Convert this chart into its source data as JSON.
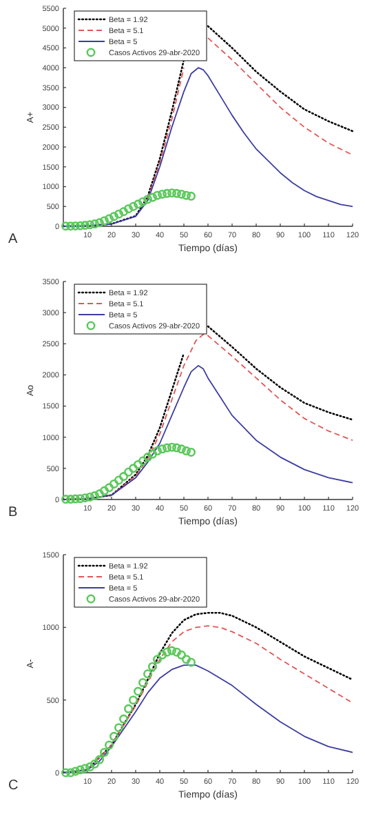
{
  "chart_data": [
    {
      "type": "line",
      "xlabel": "Tiempo (días)",
      "ylabel": "A+",
      "xlim": [
        0,
        120
      ],
      "xticks": [
        10,
        20,
        30,
        40,
        50,
        60,
        70,
        80,
        90,
        100,
        110,
        120
      ],
      "ylim": [
        0,
        5500
      ],
      "yticks": [
        0,
        500,
        1000,
        1500,
        2000,
        2500,
        3000,
        3500,
        4000,
        4500,
        5000,
        5500
      ],
      "legend": "top left",
      "annotations": [
        "A"
      ],
      "series": [
        {
          "name": "Beta = 1.92",
          "color": "#000000",
          "line_style": "dotted",
          "x": [
            0,
            10,
            20,
            30,
            35,
            40,
            45,
            50,
            52,
            60,
            70,
            80,
            90,
            100,
            110,
            120
          ],
          "values": [
            0,
            10,
            60,
            260,
            750,
            1700,
            2900,
            4200,
            null,
            5050,
            4500,
            3900,
            3400,
            2950,
            2650,
            2400
          ]
        },
        {
          "name": "Beta = 5.1",
          "color": "#e05555",
          "line_style": "dashed",
          "x": [
            35,
            40,
            45,
            50,
            52,
            60,
            70,
            80,
            90,
            100,
            110,
            120
          ],
          "values": [
            700,
            1600,
            2700,
            4000,
            null,
            4750,
            4200,
            3600,
            3000,
            2500,
            2100,
            1800
          ]
        },
        {
          "name": "Beta = 5",
          "color": "#3c3ca0",
          "line_style": "solid",
          "x": [
            0,
            10,
            20,
            30,
            35,
            40,
            45,
            50,
            53,
            56,
            58,
            60,
            65,
            70,
            75,
            80,
            85,
            90,
            95,
            100,
            105,
            110,
            115,
            120
          ],
          "values": [
            0,
            10,
            60,
            250,
            650,
            1500,
            2500,
            3400,
            3850,
            4000,
            3950,
            3800,
            3300,
            2800,
            2350,
            1950,
            1650,
            1350,
            1100,
            900,
            750,
            650,
            550,
            500
          ]
        },
        {
          "name": "Casos Activos 29-abr-2020",
          "color": "#5cc85c",
          "type": "scatter",
          "marker": "circle",
          "x": [
            1,
            3,
            5,
            7,
            9,
            11,
            13,
            15,
            17,
            19,
            21,
            23,
            25,
            27,
            29,
            31,
            33,
            35,
            37,
            39,
            41,
            43,
            45,
            47,
            49,
            51,
            53
          ],
          "values": [
            5,
            5,
            10,
            15,
            25,
            40,
            60,
            90,
            140,
            190,
            250,
            310,
            370,
            440,
            500,
            560,
            620,
            680,
            730,
            780,
            810,
            830,
            840,
            830,
            810,
            780,
            760
          ]
        }
      ]
    },
    {
      "type": "line",
      "xlabel": "Tiempo (días)",
      "ylabel": "Ao",
      "xlim": [
        0,
        120
      ],
      "xticks": [
        10,
        20,
        30,
        40,
        50,
        60,
        70,
        80,
        90,
        100,
        110,
        120
      ],
      "ylim": [
        0,
        3500
      ],
      "yticks": [
        0,
        500,
        1000,
        1500,
        2000,
        2500,
        3000,
        3500
      ],
      "legend": "top left",
      "annotations": [
        "B"
      ],
      "series": [
        {
          "name": "Beta = 1.92",
          "color": "#000000",
          "line_style": "dotted",
          "x": [
            0,
            10,
            20,
            30,
            35,
            40,
            45,
            50,
            55,
            60,
            70,
            80,
            90,
            100,
            110,
            120
          ],
          "values": [
            0,
            10,
            70,
            400,
            700,
            1150,
            1750,
            2350,
            null,
            2780,
            2450,
            2100,
            1800,
            1550,
            1400,
            1280
          ]
        },
        {
          "name": "Beta = 5.1",
          "color": "#e05555",
          "line_style": "dashed",
          "x": [
            0,
            10,
            20,
            30,
            35,
            40,
            45,
            50,
            55,
            58,
            60,
            70,
            80,
            90,
            100,
            110,
            120
          ],
          "values": [
            0,
            10,
            70,
            380,
            650,
            1050,
            1600,
            2150,
            2550,
            2650,
            2630,
            2300,
            1950,
            1600,
            1300,
            1100,
            950
          ]
        },
        {
          "name": "Beta = 5",
          "color": "#3c3ca0",
          "line_style": "solid",
          "x": [
            0,
            10,
            20,
            30,
            35,
            40,
            45,
            50,
            53,
            56,
            58,
            60,
            65,
            70,
            80,
            90,
            100,
            110,
            120
          ],
          "values": [
            0,
            10,
            70,
            350,
            600,
            900,
            1350,
            1800,
            2050,
            2150,
            2100,
            1950,
            1650,
            1350,
            950,
            680,
            480,
            350,
            270
          ]
        },
        {
          "name": "Casos Activos 29-abr-2020",
          "color": "#5cc85c",
          "type": "scatter",
          "marker": "circle",
          "x": [
            1,
            3,
            5,
            7,
            9,
            11,
            13,
            15,
            17,
            19,
            21,
            23,
            25,
            27,
            29,
            31,
            33,
            35,
            37,
            39,
            41,
            43,
            45,
            47,
            49,
            51,
            53
          ],
          "values": [
            5,
            5,
            10,
            15,
            25,
            40,
            60,
            90,
            140,
            190,
            250,
            310,
            370,
            440,
            500,
            560,
            620,
            680,
            730,
            780,
            810,
            830,
            840,
            830,
            810,
            780,
            760
          ]
        }
      ]
    },
    {
      "type": "line",
      "xlabel": "Tiempo (días)",
      "ylabel": "A-",
      "xlim": [
        0,
        120
      ],
      "xticks": [
        10,
        20,
        30,
        40,
        50,
        60,
        70,
        80,
        90,
        100,
        110,
        120
      ],
      "ylim": [
        0,
        1500
      ],
      "yticks": [
        0,
        500,
        1000,
        1500
      ],
      "legend": "top left",
      "annotations": [
        "C"
      ],
      "series": [
        {
          "name": "Beta = 1.92",
          "color": "#000000",
          "line_style": "dotted",
          "x": [
            0,
            10,
            20,
            30,
            35,
            40,
            45,
            50,
            55,
            60,
            65,
            70,
            80,
            90,
            100,
            110,
            120
          ],
          "values": [
            0,
            20,
            190,
            470,
            640,
            820,
            960,
            1050,
            1090,
            1100,
            1100,
            1080,
            1000,
            900,
            800,
            720,
            640
          ]
        },
        {
          "name": "Beta = 5.1",
          "color": "#e05555",
          "line_style": "dashed",
          "x": [
            0,
            10,
            20,
            30,
            35,
            40,
            45,
            50,
            55,
            60,
            65,
            70,
            80,
            90,
            100,
            110,
            120
          ],
          "values": [
            0,
            20,
            190,
            460,
            620,
            780,
            900,
            970,
            1000,
            1010,
            1000,
            970,
            890,
            780,
            680,
            580,
            480
          ]
        },
        {
          "name": "Beta = 5",
          "color": "#3c3ca0",
          "line_style": "solid",
          "x": [
            0,
            10,
            15,
            20,
            25,
            30,
            35,
            40,
            45,
            50,
            53,
            55,
            60,
            70,
            80,
            90,
            100,
            110,
            120
          ],
          "values": [
            0,
            20,
            80,
            180,
            300,
            420,
            550,
            650,
            710,
            740,
            740,
            740,
            700,
            600,
            470,
            350,
            250,
            180,
            140
          ]
        },
        {
          "name": "Casos Activos 29-abr-2020",
          "color": "#5cc85c",
          "type": "scatter",
          "marker": "circle",
          "x": [
            1,
            3,
            5,
            7,
            9,
            11,
            13,
            15,
            17,
            19,
            21,
            23,
            25,
            27,
            29,
            31,
            33,
            35,
            37,
            39,
            41,
            43,
            45,
            47,
            49,
            51,
            53
          ],
          "values": [
            0,
            0,
            10,
            20,
            30,
            40,
            60,
            90,
            140,
            190,
            250,
            310,
            370,
            440,
            500,
            560,
            620,
            680,
            730,
            780,
            810,
            830,
            840,
            830,
            810,
            780,
            760
          ]
        }
      ]
    }
  ]
}
